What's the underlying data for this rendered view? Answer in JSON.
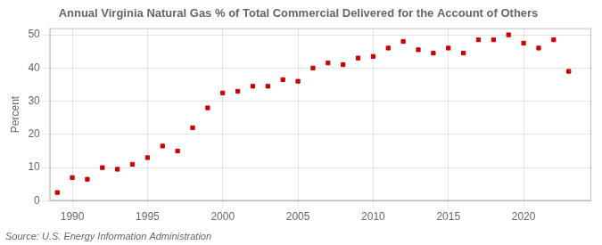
{
  "chart_data": {
    "type": "scatter",
    "title": "Annual Virginia Natural Gas % of Total Commercial Delivered for the Account of Others",
    "ylabel": "Percent",
    "annotations": [
      "Source: U.S. Energy Information Administration"
    ],
    "x": [
      1989,
      1990,
      1991,
      1992,
      1993,
      1994,
      1995,
      1996,
      1997,
      1998,
      1999,
      2000,
      2001,
      2002,
      2003,
      2004,
      2005,
      2006,
      2007,
      2008,
      2009,
      2010,
      2011,
      2012,
      2013,
      2014,
      2015,
      2016,
      2017,
      2018,
      2019,
      2020,
      2021,
      2022,
      2023
    ],
    "values": [
      2.5,
      7.0,
      6.5,
      10.0,
      9.5,
      11.0,
      13.0,
      16.5,
      15.0,
      22.0,
      28.0,
      32.5,
      33.0,
      34.5,
      34.5,
      36.5,
      36.0,
      40.0,
      41.5,
      41.0,
      43.0,
      43.5,
      46.0,
      48.0,
      45.5,
      44.5,
      46.0,
      44.5,
      48.5,
      48.5,
      50.0,
      47.5,
      46.0,
      48.5,
      39.0
    ],
    "color": "#cc0000",
    "marker": "square",
    "xlim": [
      1988.5,
      2024.5
    ],
    "ylim": [
      0,
      52
    ],
    "xticks": [
      1990,
      1995,
      2000,
      2005,
      2010,
      2015,
      2020
    ],
    "yticks": [
      0,
      10,
      20,
      30,
      40,
      50
    ],
    "grid": true
  }
}
